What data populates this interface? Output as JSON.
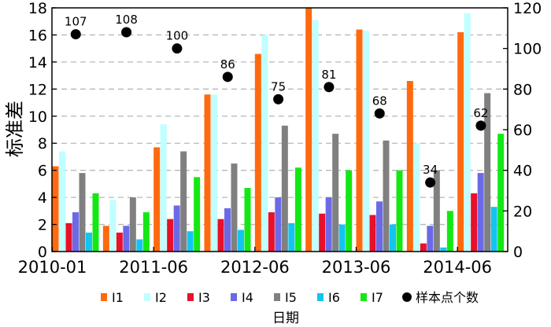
{
  "chart_data": {
    "type": "bar",
    "xlabel": "日期",
    "ylabel": "标准差",
    "ylim": [
      0,
      18
    ],
    "yticks": [
      0,
      2,
      4,
      6,
      8,
      10,
      12,
      14,
      16,
      18
    ],
    "y2lim": [
      0,
      120
    ],
    "y2ticks": [
      0,
      20,
      40,
      60,
      80,
      100,
      120
    ],
    "grid": "horizontal-dashed",
    "legend_position": "bottom",
    "x_tick_labels": [
      "2010-01",
      "2011-06",
      "2012-06",
      "2013-06",
      "2014-06"
    ],
    "x_tick_group_index": [
      0,
      2,
      4,
      6,
      8
    ],
    "group_count": 9,
    "series": [
      {
        "name": "I1",
        "color": "#ff6a0f",
        "values": [
          6.3,
          1.9,
          7.7,
          11.6,
          14.6,
          18.0,
          16.4,
          12.6,
          16.2
        ]
      },
      {
        "name": "I2",
        "color": "#bfffff",
        "values": [
          7.4,
          3.8,
          9.4,
          11.6,
          16.0,
          17.1,
          16.3,
          8.0,
          17.6
        ]
      },
      {
        "name": "I3",
        "color": "#e8102a",
        "values": [
          2.1,
          1.4,
          2.4,
          2.4,
          2.9,
          2.8,
          2.7,
          0.6,
          4.3
        ]
      },
      {
        "name": "I4",
        "color": "#6a6ae8",
        "values": [
          2.9,
          1.9,
          3.4,
          3.2,
          4.0,
          4.0,
          3.7,
          1.9,
          5.8
        ]
      },
      {
        "name": "I5",
        "color": "#808080",
        "values": [
          5.8,
          4.0,
          7.4,
          6.5,
          9.3,
          8.7,
          8.2,
          6.0,
          11.7
        ]
      },
      {
        "name": "I6",
        "color": "#14c4f0",
        "values": [
          1.4,
          0.9,
          1.5,
          1.6,
          2.1,
          2.0,
          2.0,
          0.3,
          3.3
        ]
      },
      {
        "name": "I7",
        "color": "#14e814",
        "values": [
          4.3,
          2.9,
          5.5,
          4.7,
          6.2,
          6.0,
          6.0,
          3.0,
          8.7
        ]
      }
    ],
    "sample_counts": {
      "name": "样本点个数",
      "color": "#000000",
      "axis": "right",
      "values": [
        107,
        108,
        100,
        86,
        75,
        81,
        68,
        34,
        62
      ]
    }
  }
}
